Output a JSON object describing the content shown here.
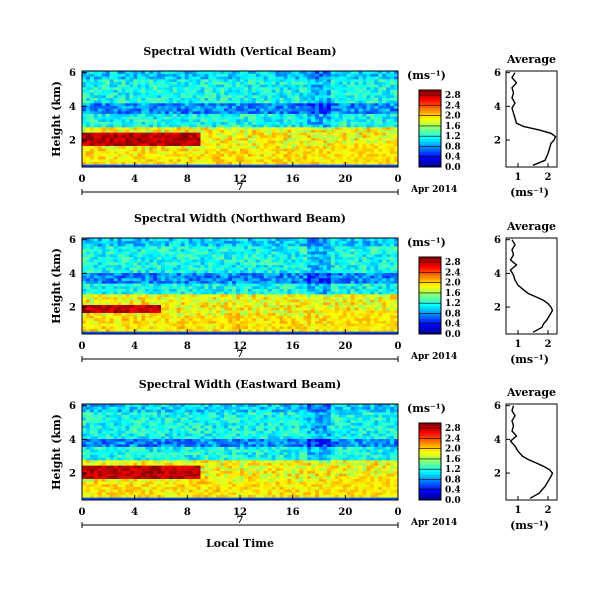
{
  "shared": {
    "xlabel": "Local Time",
    "ylabel": "Height (km)",
    "unit": "(ms⁻¹)",
    "date_label": "Apr 2014",
    "day_label": "7",
    "x_ticks": [
      "0",
      "4",
      "8",
      "12",
      "16",
      "20",
      "0"
    ],
    "y_ticks": [
      "2",
      "4",
      "6"
    ],
    "colorbar_ticks": [
      "0.0",
      "0.4",
      "0.8",
      "1.2",
      "1.6",
      "2.0",
      "2.4",
      "2.8"
    ],
    "profile_xticks": [
      "1",
      "2"
    ],
    "profile_yticks": [
      "2",
      "4",
      "6"
    ]
  },
  "chart_data": [
    {
      "type": "heatmap",
      "title": "Spectral Width (Vertical Beam)",
      "xlabel": "",
      "ylabel": "Height (km)",
      "xlim": [
        0,
        24
      ],
      "ylim": [
        0.4,
        6.1
      ],
      "clim": [
        0.0,
        3.0
      ],
      "colorbar_ticks": [
        0.0,
        0.4,
        0.8,
        1.2,
        1.6,
        2.0,
        2.4,
        2.8
      ],
      "features": {
        "red_layer_time": [
          0,
          9
        ],
        "red_layer_height": [
          1.6,
          2.5
        ],
        "low_band_height": [
          3.6,
          4.2
        ]
      },
      "profile": {
        "title": "Average",
        "xlabel": "(ms⁻¹)",
        "xlim": [
          0.6,
          2.3
        ],
        "ylim": [
          0.4,
          6.1
        ],
        "heights": [
          0.5,
          0.8,
          1.0,
          1.2,
          1.5,
          1.8,
          2.0,
          2.2,
          2.4,
          2.6,
          2.8,
          3.0,
          3.3,
          3.6,
          3.9,
          4.2,
          4.5,
          4.8,
          5.1,
          5.4,
          5.7,
          6.0
        ],
        "values": [
          1.5,
          1.9,
          1.95,
          2.0,
          2.05,
          2.1,
          2.2,
          2.25,
          2.1,
          1.7,
          1.2,
          0.95,
          0.9,
          0.85,
          0.8,
          0.9,
          0.8,
          0.85,
          0.8,
          0.95,
          0.8,
          0.9
        ]
      }
    },
    {
      "type": "heatmap",
      "title": "Spectral Width (Northward Beam)",
      "xlabel": "",
      "ylabel": "Height (km)",
      "xlim": [
        0,
        24
      ],
      "ylim": [
        0.4,
        6.1
      ],
      "clim": [
        0.0,
        3.0
      ],
      "colorbar_ticks": [
        0.0,
        0.4,
        0.8,
        1.2,
        1.6,
        2.0,
        2.4,
        2.8
      ],
      "features": {
        "red_layer_time": [
          0,
          6
        ],
        "red_layer_height": [
          1.6,
          2.2
        ],
        "low_band_height": [
          3.4,
          4.0
        ]
      },
      "profile": {
        "title": "Average",
        "xlabel": "(ms⁻¹)",
        "xlim": [
          0.6,
          2.3
        ],
        "ylim": [
          0.4,
          6.1
        ],
        "heights": [
          0.5,
          0.8,
          1.0,
          1.2,
          1.5,
          1.8,
          2.0,
          2.2,
          2.4,
          2.6,
          2.8,
          3.0,
          3.3,
          3.6,
          3.9,
          4.2,
          4.5,
          4.8,
          5.1,
          5.4,
          5.7,
          6.0
        ],
        "values": [
          1.5,
          1.8,
          1.85,
          1.95,
          2.05,
          2.15,
          2.1,
          2.0,
          1.85,
          1.6,
          1.35,
          1.2,
          1.0,
          0.9,
          0.85,
          0.75,
          0.95,
          0.75,
          0.85,
          0.8,
          0.9,
          0.8
        ]
      }
    },
    {
      "type": "heatmap",
      "title": "Spectral Width (Eastward Beam)",
      "xlabel": "Local Time",
      "ylabel": "Height (km)",
      "xlim": [
        0,
        24
      ],
      "ylim": [
        0.4,
        6.1
      ],
      "clim": [
        0.0,
        3.0
      ],
      "colorbar_ticks": [
        0.0,
        0.4,
        0.8,
        1.2,
        1.6,
        2.0,
        2.4,
        2.8
      ],
      "features": {
        "red_layer_time": [
          0,
          9
        ],
        "red_layer_height": [
          1.6,
          2.4
        ],
        "low_band_height": [
          3.5,
          4.1
        ]
      },
      "profile": {
        "title": "Average",
        "xlabel": "(ms⁻¹)",
        "xlim": [
          0.6,
          2.3
        ],
        "ylim": [
          0.4,
          6.1
        ],
        "heights": [
          0.5,
          0.8,
          1.0,
          1.2,
          1.5,
          1.8,
          2.0,
          2.2,
          2.4,
          2.6,
          2.8,
          3.0,
          3.3,
          3.6,
          3.9,
          4.2,
          4.5,
          4.8,
          5.1,
          5.4,
          5.7,
          6.0
        ],
        "values": [
          1.4,
          1.7,
          1.8,
          1.9,
          2.0,
          2.1,
          2.15,
          2.05,
          1.85,
          1.6,
          1.35,
          1.15,
          1.0,
          0.9,
          0.75,
          0.95,
          0.8,
          0.85,
          0.8,
          0.9,
          0.8,
          0.85
        ]
      }
    }
  ]
}
